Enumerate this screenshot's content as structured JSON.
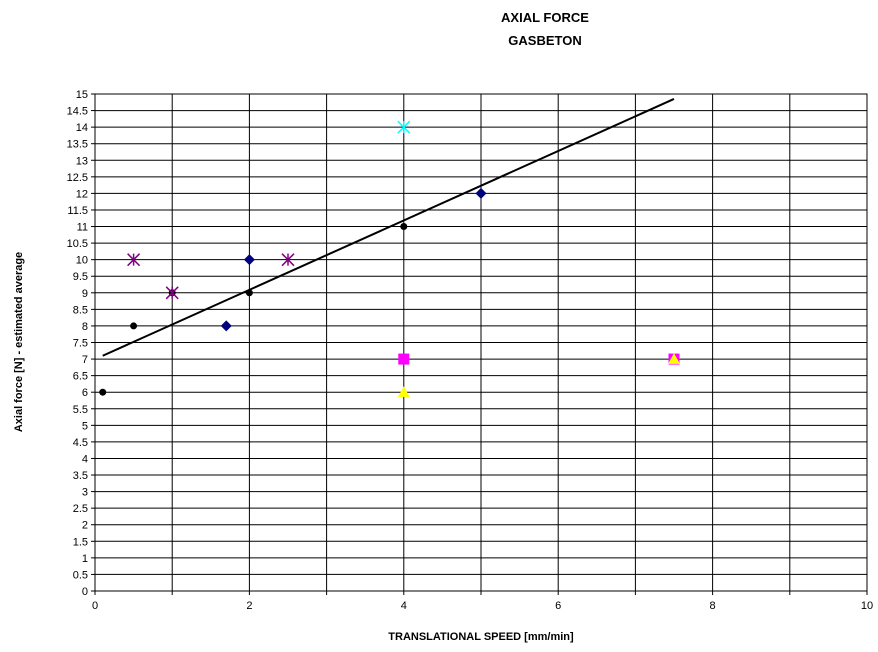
{
  "chart_data": {
    "type": "scatter",
    "title_lines": [
      "AXIAL FORCE",
      "GASBETON"
    ],
    "xlabel": "TRANSLATIONAL SPEED [mm/min]",
    "ylabel": "Axial force [N] - estimated average",
    "xlim": [
      0,
      10
    ],
    "ylim": [
      0,
      15
    ],
    "x_ticks": [
      0,
      2,
      4,
      6,
      8,
      10
    ],
    "x_grid_step": 1,
    "y_tick_step": 0.5,
    "grid": true,
    "legend": "none",
    "series": [
      {
        "marker": "circle",
        "color": "#000000",
        "points": [
          [
            0.1,
            6
          ],
          [
            0.5,
            8
          ],
          [
            1,
            9
          ],
          [
            2,
            9
          ],
          [
            4,
            11
          ]
        ]
      },
      {
        "marker": "diamond",
        "color": "#000080",
        "points": [
          [
            1.7,
            8
          ],
          [
            2,
            10
          ],
          [
            5,
            12
          ]
        ]
      },
      {
        "marker": "star",
        "color": "#800080",
        "points": [
          [
            0.5,
            10
          ],
          [
            1,
            9
          ],
          [
            2.5,
            10
          ]
        ]
      },
      {
        "marker": "square",
        "color": "#FF00FF",
        "points": [
          [
            4,
            7
          ],
          [
            7.5,
            7
          ]
        ]
      },
      {
        "marker": "triangle",
        "color": "#FFFF00",
        "points": [
          [
            4,
            6
          ],
          [
            7.5,
            7
          ]
        ]
      },
      {
        "marker": "star",
        "color": "#00FFFF",
        "points": [
          [
            4,
            14
          ]
        ]
      }
    ],
    "trendline": {
      "type": "linear",
      "color": "#000000",
      "from": [
        0.1,
        7.1
      ],
      "to": [
        7.5,
        14.85
      ]
    }
  }
}
